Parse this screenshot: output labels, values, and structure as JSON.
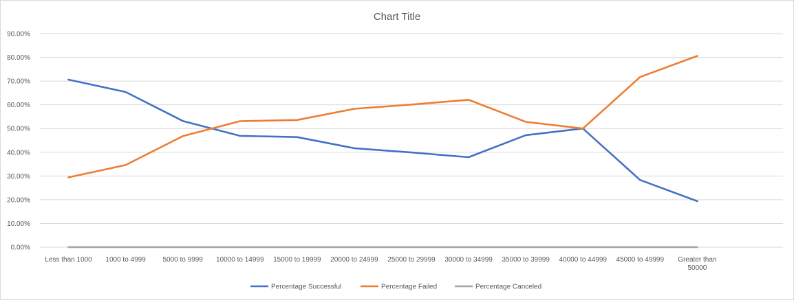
{
  "chart_data": {
    "type": "line",
    "title": "Chart Title",
    "xlabel": "",
    "ylabel": "",
    "ylim": [
      0,
      90
    ],
    "y_ticks": [
      {
        "value": 0,
        "label": "0.00%"
      },
      {
        "value": 10,
        "label": "10.00%"
      },
      {
        "value": 20,
        "label": "20.00%"
      },
      {
        "value": 30,
        "label": "30.00%"
      },
      {
        "value": 40,
        "label": "40.00%"
      },
      {
        "value": 50,
        "label": "50.00%"
      },
      {
        "value": 60,
        "label": "60.00%"
      },
      {
        "value": 70,
        "label": "70.00%"
      },
      {
        "value": 80,
        "label": "80.00%"
      },
      {
        "value": 90,
        "label": "90.00%"
      }
    ],
    "grid": true,
    "legend_position": "bottom",
    "categories": [
      [
        "Less than 1000"
      ],
      [
        "1000 to 4999"
      ],
      [
        "5000 to 9999"
      ],
      [
        "10000 to 14999"
      ],
      [
        "15000 to 19999"
      ],
      [
        "20000 to 24999"
      ],
      [
        "25000 to 29999"
      ],
      [
        "30000 to 34999"
      ],
      [
        "35000 to 39999"
      ],
      [
        "40000 to 44999"
      ],
      [
        "45000 to 49999"
      ],
      [
        "Greater than",
        "50000"
      ]
    ],
    "series": [
      {
        "name": "Percentage Successful",
        "color": "#4472C4",
        "values": [
          70.6,
          65.4,
          53.2,
          46.9,
          46.4,
          41.7,
          39.9,
          37.9,
          47.2,
          50.0,
          28.3,
          19.4
        ]
      },
      {
        "name": "Percentage Failed",
        "color": "#ED7D31",
        "values": [
          29.4,
          34.6,
          46.8,
          53.1,
          53.6,
          58.3,
          60.1,
          62.1,
          52.8,
          50.0,
          71.7,
          80.6
        ]
      },
      {
        "name": "Percentage Canceled",
        "color": "#A5A5A5",
        "values": [
          0,
          0,
          0,
          0,
          0,
          0,
          0,
          0,
          0,
          0,
          0,
          0
        ]
      }
    ]
  }
}
